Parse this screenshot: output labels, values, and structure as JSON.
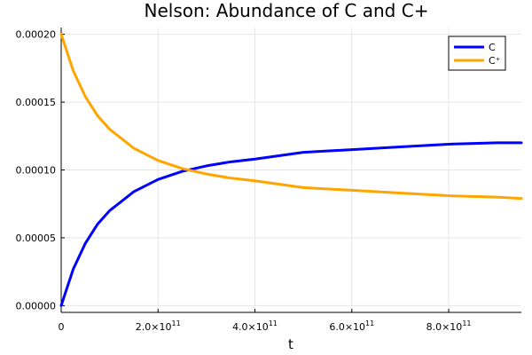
{
  "chart_data": {
    "type": "line",
    "title": "Nelson: Abundance of C and C+",
    "xlabel": "t",
    "ylabel": "",
    "xlim": [
      0,
      950000000000.0
    ],
    "ylim": [
      -5e-06,
      0.000205
    ],
    "x_ticks": [
      {
        "value": 0,
        "mantissa": "0",
        "exp": ""
      },
      {
        "value": 200000000000.0,
        "mantissa": "2.0×10",
        "exp": "11"
      },
      {
        "value": 400000000000.0,
        "mantissa": "4.0×10",
        "exp": "11"
      },
      {
        "value": 600000000000.0,
        "mantissa": "6.0×10",
        "exp": "11"
      },
      {
        "value": 800000000000.0,
        "mantissa": "8.0×10",
        "exp": "11"
      }
    ],
    "y_ticks": [
      {
        "value": 0,
        "label": "0.00000"
      },
      {
        "value": 5e-05,
        "label": "0.00005"
      },
      {
        "value": 0.0001,
        "label": "0.00010"
      },
      {
        "value": 0.00015,
        "label": "0.00015"
      },
      {
        "value": 0.0002,
        "label": "0.00020"
      }
    ],
    "grid": true,
    "legend_position": "top-right",
    "series": [
      {
        "name": "C",
        "color": "#0000ff",
        "x": [
          0,
          25000000000.0,
          50000000000.0,
          75000000000.0,
          100000000000.0,
          150000000000.0,
          200000000000.0,
          250000000000.0,
          300000000000.0,
          350000000000.0,
          400000000000.0,
          500000000000.0,
          600000000000.0,
          700000000000.0,
          800000000000.0,
          900000000000.0,
          950000000000.0
        ],
        "y": [
          0,
          2.7e-05,
          4.6e-05,
          6e-05,
          7e-05,
          8.4e-05,
          9.3e-05,
          9.9e-05,
          0.000103,
          0.000106,
          0.000108,
          0.000113,
          0.000115,
          0.000117,
          0.000119,
          0.00012,
          0.00012
        ]
      },
      {
        "name": "C⁺",
        "color": "#ffa500",
        "x": [
          0,
          25000000000.0,
          50000000000.0,
          75000000000.0,
          100000000000.0,
          150000000000.0,
          200000000000.0,
          250000000000.0,
          300000000000.0,
          350000000000.0,
          400000000000.0,
          500000000000.0,
          600000000000.0,
          700000000000.0,
          800000000000.0,
          900000000000.0,
          950000000000.0
        ],
        "y": [
          0.0002,
          0.000173,
          0.000154,
          0.00014,
          0.00013,
          0.000116,
          0.000107,
          0.000101,
          9.7e-05,
          9.4e-05,
          9.2e-05,
          8.7e-05,
          8.5e-05,
          8.3e-05,
          8.1e-05,
          8e-05,
          7.9e-05
        ]
      }
    ]
  }
}
